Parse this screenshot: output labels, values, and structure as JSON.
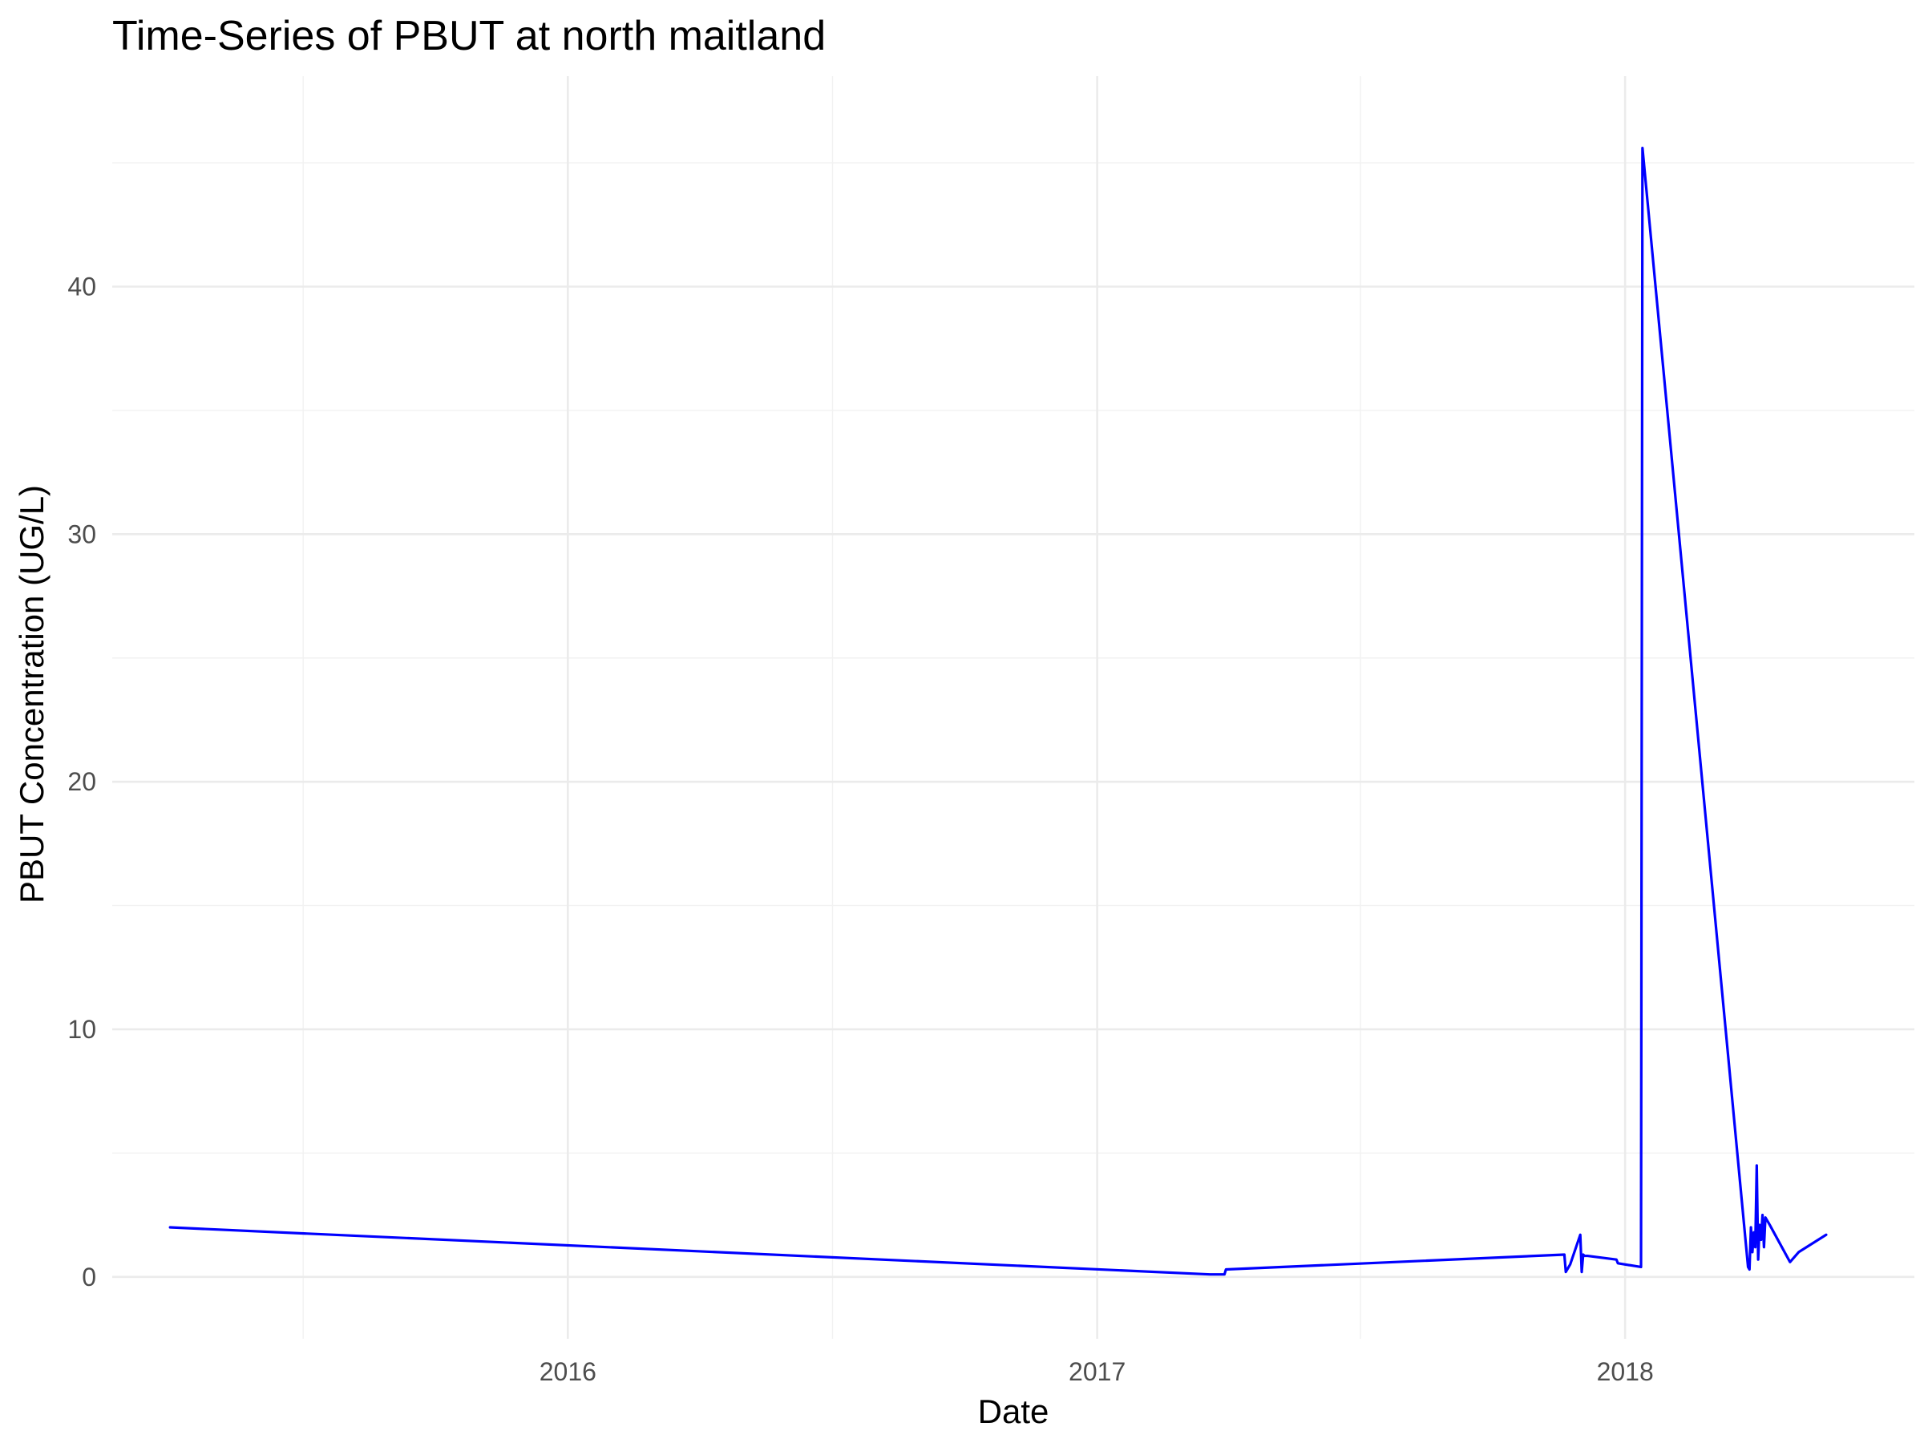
{
  "chart_data": {
    "type": "line",
    "title": "Time-Series of PBUT at north maitland",
    "xlabel": "Date",
    "ylabel": "PBUT Concentration (UG/L)",
    "xlim": [
      "2015-02-20",
      "2018-07-20"
    ],
    "ylim": [
      -2.5,
      48.5
    ],
    "x_ticks": [
      "2016-01-01",
      "2017-01-01",
      "2018-01-01"
    ],
    "x_tick_labels": [
      "2016",
      "2017",
      "2018"
    ],
    "x_minor_ticks": [
      "2015-07-02",
      "2016-07-02",
      "2017-07-02"
    ],
    "y_ticks": [
      0,
      10,
      20,
      30,
      40
    ],
    "y_tick_labels": [
      "0",
      "10",
      "20",
      "30",
      "40"
    ],
    "y_minor_ticks": [
      5,
      15,
      25,
      35,
      45
    ],
    "grid": true,
    "legend": "none",
    "series": [
      {
        "color": "#0000ff",
        "x": [
          "2015-04-01",
          "2017-03-20",
          "2017-03-30",
          "2017-03-31",
          "2017-11-20",
          "2017-11-21",
          "2017-11-24",
          "2017-12-01",
          "2017-12-02",
          "2017-12-03",
          "2017-12-04",
          "2017-12-05",
          "2017-12-06",
          "2017-12-26",
          "2017-12-27",
          "2018-01-12",
          "2018-01-13",
          "2018-03-27",
          "2018-03-28",
          "2018-03-29",
          "2018-03-30",
          "2018-03-31",
          "2018-04-01",
          "2018-04-02",
          "2018-04-03",
          "2018-04-04",
          "2018-04-05",
          "2018-04-06",
          "2018-04-07",
          "2018-04-08",
          "2018-04-09",
          "2018-04-10",
          "2018-04-11",
          "2018-04-25",
          "2018-05-01",
          "2018-05-20"
        ],
        "y": [
          2.0,
          0.1,
          0.1,
          0.3,
          0.9,
          0.2,
          0.5,
          1.7,
          0.2,
          0.9,
          0.85,
          0.85,
          0.85,
          0.7,
          0.55,
          0.4,
          45.6,
          0.4,
          0.3,
          2.0,
          1.0,
          1.8,
          1.2,
          4.5,
          0.7,
          2.1,
          1.5,
          2.5,
          1.2,
          2.4,
          2.3,
          2.2,
          2.1,
          0.6,
          1.0,
          1.7
        ]
      }
    ]
  }
}
